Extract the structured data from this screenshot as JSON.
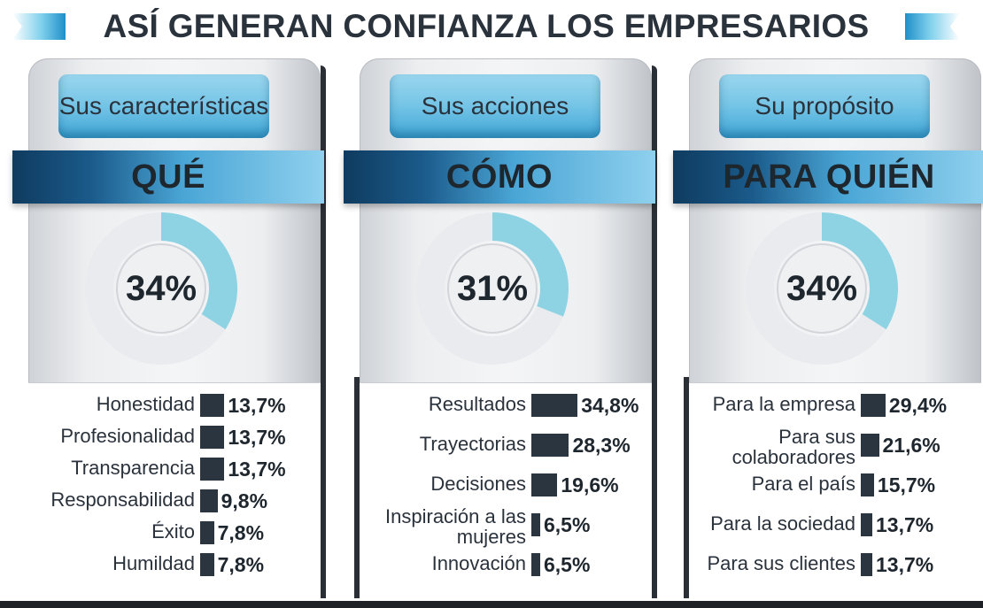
{
  "title": "ASÍ GENERAN CONFIANZA LOS EMPRESARIOS",
  "colors": {
    "donut_fill": "#8ed3e4",
    "donut_track": "#e9ebee",
    "bar": "#2b3540",
    "banner_dark": "#0f3b5f",
    "banner_light": "#8fd0ee"
  },
  "panels": [
    {
      "top_label": "Sus características",
      "banner": "QUÉ",
      "percent_label": "34%"
    },
    {
      "top_label": "Sus acciones",
      "banner": "CÓMO",
      "percent_label": "31%"
    },
    {
      "top_label": "Su propósito",
      "banner": "PARA QUIÉN",
      "percent_label": "34%"
    }
  ],
  "chart_data": [
    {
      "type": "pie",
      "title": "",
      "values": [
        34
      ],
      "value_label": "34%"
    },
    {
      "type": "bar",
      "title": "",
      "categories": [
        "Honestidad",
        "Profesionalidad",
        "Transparencia",
        "Responsabilidad",
        "Éxito",
        "Humildad"
      ],
      "values": [
        13.7,
        13.7,
        13.7,
        9.8,
        7.8,
        7.8
      ],
      "value_labels": [
        "13,7%",
        "13,7%",
        "13,7%",
        "9,8%",
        "7,8%",
        "7,8%"
      ]
    },
    {
      "type": "pie",
      "title": "",
      "values": [
        31
      ],
      "value_label": "31%"
    },
    {
      "type": "bar",
      "title": "",
      "categories": [
        "Resultados",
        "Trayectorias",
        "Decisiones",
        "Inspiración a las mujeres",
        "Innovación"
      ],
      "values": [
        34.8,
        28.3,
        19.6,
        6.5,
        6.5
      ],
      "value_labels": [
        "34,8%",
        "28,3%",
        "19,6%",
        "6,5%",
        "6,5%"
      ]
    },
    {
      "type": "pie",
      "title": "",
      "values": [
        34
      ],
      "value_label": "34%"
    },
    {
      "type": "bar",
      "title": "",
      "categories": [
        "Para la empresa",
        "Para sus colaboradores",
        "Para el país",
        "Para la sociedad",
        "Para sus clientes"
      ],
      "values": [
        29.4,
        21.6,
        15.7,
        13.7,
        13.7
      ],
      "value_labels": [
        "29,4%",
        "21,6%",
        "15,7%",
        "13,7%",
        "13,7%"
      ]
    }
  ]
}
